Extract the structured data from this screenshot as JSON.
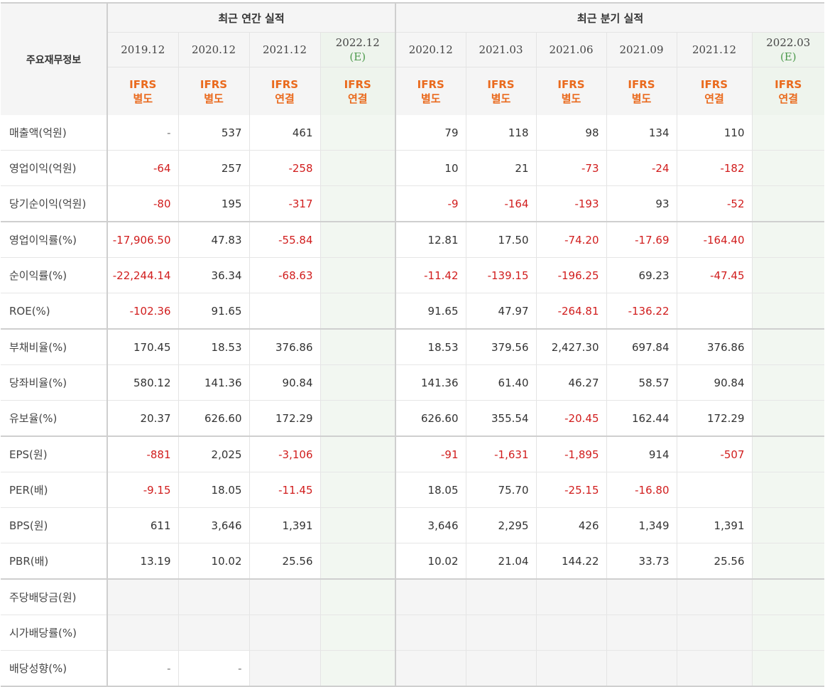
{
  "header": {
    "row_label": "주요재무정보",
    "annual_title": "최근 연간 실적",
    "quarter_title": "최근 분기 실적",
    "annual_periods": [
      {
        "label": "2019.12",
        "est": "",
        "ifrs1": "IFRS",
        "ifrs2": "별도"
      },
      {
        "label": "2020.12",
        "est": "",
        "ifrs1": "IFRS",
        "ifrs2": "별도"
      },
      {
        "label": "2021.12",
        "est": "",
        "ifrs1": "IFRS",
        "ifrs2": "연결"
      },
      {
        "label": "2022.12",
        "est": "(E)",
        "ifrs1": "IFRS",
        "ifrs2": "연결"
      }
    ],
    "quarter_periods": [
      {
        "label": "2020.12",
        "est": "",
        "ifrs1": "IFRS",
        "ifrs2": "별도"
      },
      {
        "label": "2021.03",
        "est": "",
        "ifrs1": "IFRS",
        "ifrs2": "별도"
      },
      {
        "label": "2021.06",
        "est": "",
        "ifrs1": "IFRS",
        "ifrs2": "별도"
      },
      {
        "label": "2021.09",
        "est": "",
        "ifrs1": "IFRS",
        "ifrs2": "별도"
      },
      {
        "label": "2021.12",
        "est": "",
        "ifrs1": "IFRS",
        "ifrs2": "연결"
      },
      {
        "label": "2022.03",
        "est": "(E)",
        "ifrs1": "IFRS",
        "ifrs2": "연결"
      }
    ]
  },
  "rows": [
    {
      "label": "매출액(억원)",
      "group_end": false,
      "values": [
        "-",
        "537",
        "461",
        "",
        "79",
        "118",
        "98",
        "134",
        "110",
        ""
      ]
    },
    {
      "label": "영업이익(억원)",
      "group_end": false,
      "values": [
        "-64",
        "257",
        "-258",
        "",
        "10",
        "21",
        "-73",
        "-24",
        "-182",
        ""
      ]
    },
    {
      "label": "당기순이익(억원)",
      "group_end": true,
      "values": [
        "-80",
        "195",
        "-317",
        "",
        "-9",
        "-164",
        "-193",
        "93",
        "-52",
        ""
      ]
    },
    {
      "label": "영업이익률(%)",
      "group_end": false,
      "values": [
        "-17,906.50",
        "47.83",
        "-55.84",
        "",
        "12.81",
        "17.50",
        "-74.20",
        "-17.69",
        "-164.40",
        ""
      ]
    },
    {
      "label": "순이익률(%)",
      "group_end": false,
      "values": [
        "-22,244.14",
        "36.34",
        "-68.63",
        "",
        "-11.42",
        "-139.15",
        "-196.25",
        "69.23",
        "-47.45",
        ""
      ]
    },
    {
      "label": "ROE(%)",
      "group_end": true,
      "values": [
        "-102.36",
        "91.65",
        "",
        "",
        "91.65",
        "47.97",
        "-264.81",
        "-136.22",
        "",
        ""
      ]
    },
    {
      "label": "부채비율(%)",
      "group_end": false,
      "values": [
        "170.45",
        "18.53",
        "376.86",
        "",
        "18.53",
        "379.56",
        "2,427.30",
        "697.84",
        "376.86",
        ""
      ]
    },
    {
      "label": "당좌비율(%)",
      "group_end": false,
      "values": [
        "580.12",
        "141.36",
        "90.84",
        "",
        "141.36",
        "61.40",
        "46.27",
        "58.57",
        "90.84",
        ""
      ]
    },
    {
      "label": "유보율(%)",
      "group_end": true,
      "values": [
        "20.37",
        "626.60",
        "172.29",
        "",
        "626.60",
        "355.54",
        "-20.45",
        "162.44",
        "172.29",
        ""
      ]
    },
    {
      "label": "EPS(원)",
      "group_end": false,
      "values": [
        "-881",
        "2,025",
        "-3,106",
        "",
        "-91",
        "-1,631",
        "-1,895",
        "914",
        "-507",
        ""
      ]
    },
    {
      "label": "PER(배)",
      "group_end": false,
      "values": [
        "-9.15",
        "18.05",
        "-11.45",
        "",
        "18.05",
        "75.70",
        "-25.15",
        "-16.80",
        "",
        ""
      ]
    },
    {
      "label": "BPS(원)",
      "group_end": false,
      "values": [
        "611",
        "3,646",
        "1,391",
        "",
        "3,646",
        "2,295",
        "426",
        "1,349",
        "1,391",
        ""
      ]
    },
    {
      "label": "PBR(배)",
      "group_end": true,
      "values": [
        "13.19",
        "10.02",
        "25.56",
        "",
        "10.02",
        "21.04",
        "144.22",
        "33.73",
        "25.56",
        ""
      ]
    },
    {
      "label": "주당배당금(원)",
      "group_end": false,
      "values": [
        "",
        "",
        "",
        "",
        "",
        "",
        "",
        "",
        "",
        ""
      ],
      "empty_grey": true
    },
    {
      "label": "시가배당률(%)",
      "group_end": false,
      "values": [
        "",
        "",
        "",
        "",
        "",
        "",
        "",
        "",
        "",
        ""
      ],
      "empty_grey": true
    },
    {
      "label": "배당성향(%)",
      "group_end": false,
      "values": [
        "-",
        "-",
        "",
        "",
        "",
        "",
        "",
        "",
        "",
        ""
      ],
      "empty_grey_from": 2
    }
  ]
}
